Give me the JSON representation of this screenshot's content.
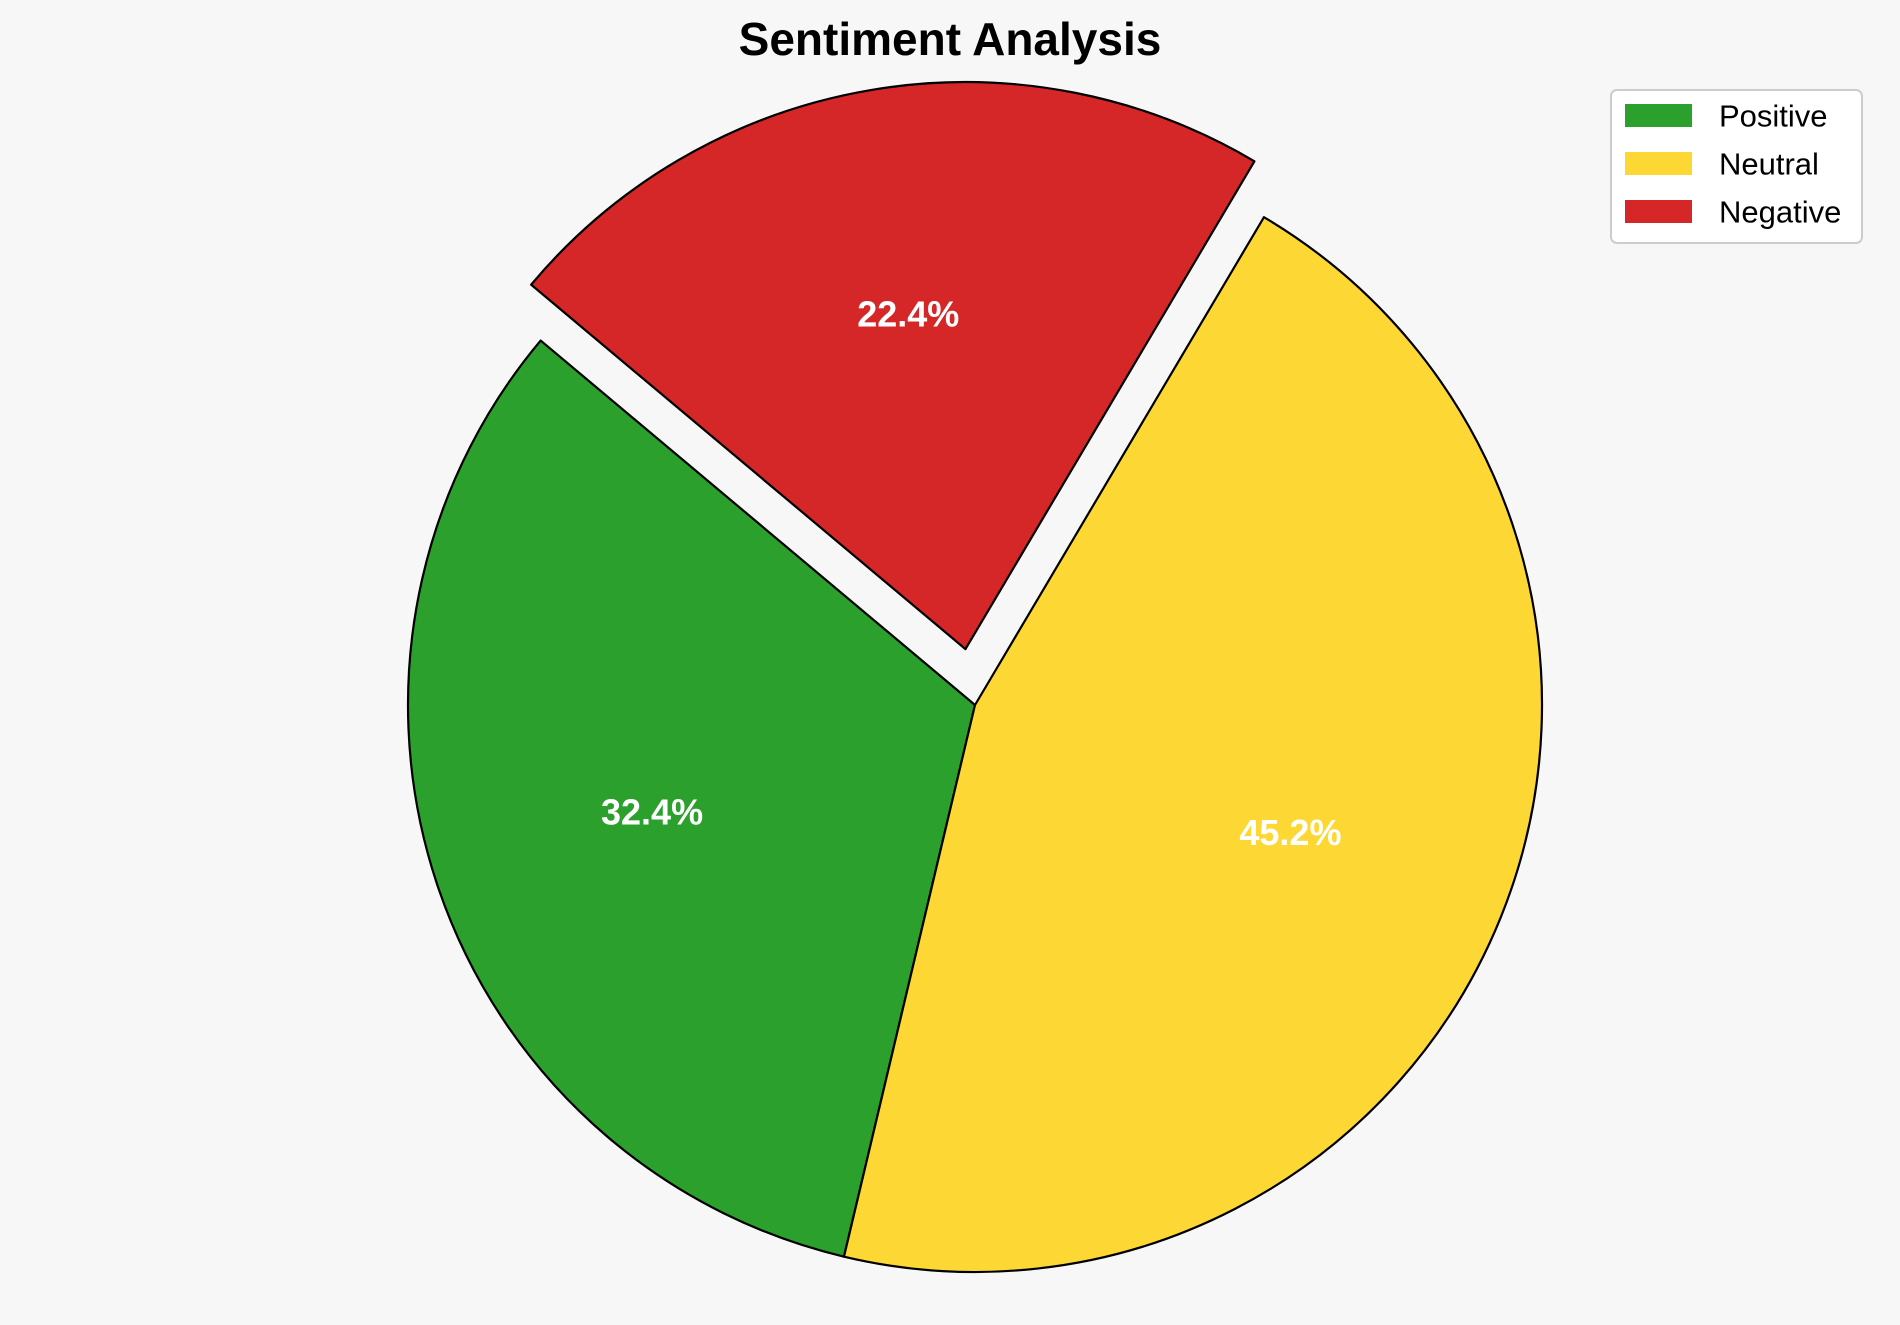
{
  "chart_data": {
    "type": "pie",
    "title": "Sentiment Analysis",
    "slices": [
      {
        "label": "Positive",
        "value": 32.4,
        "percent_label": "32.4%",
        "color": "#2ca02c",
        "exploded": false
      },
      {
        "label": "Neutral",
        "value": 45.2,
        "percent_label": "45.2%",
        "color": "#fdd835",
        "exploded": false
      },
      {
        "label": "Negative",
        "value": 22.4,
        "percent_label": "22.4%",
        "color": "#d62728",
        "exploded": true
      }
    ],
    "legend": {
      "placement": "top-right",
      "entries": [
        "Positive",
        "Neutral",
        "Negative"
      ]
    },
    "edge_color": "#000000",
    "background": "#f7f7f7"
  }
}
